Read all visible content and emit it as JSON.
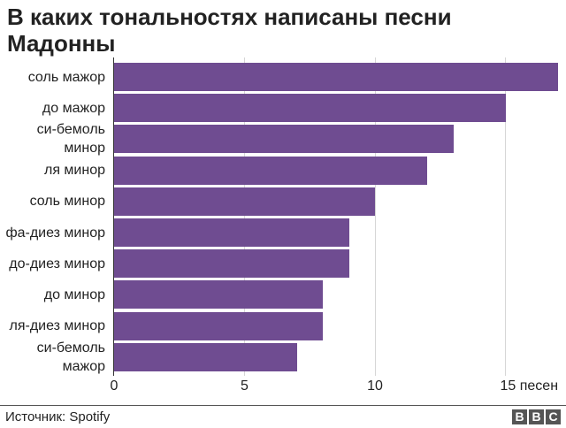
{
  "title": "В каких тональностях написаны песни Мадонны",
  "source": "Источник: Spotify",
  "logo": [
    "B",
    "B",
    "C"
  ],
  "colors": {
    "bar": "#6f4c91",
    "grid": "#d6d6d6",
    "axis": "#333333"
  },
  "ticks": [
    "0",
    "5",
    "10",
    "15 песен"
  ],
  "categories": [
    "соль мажор",
    "до мажор",
    "си-бемоль минор",
    "ля минор",
    "соль минор",
    "фа-диез минор",
    "до-диез минор",
    "до минор",
    "ля-диез минор",
    "си-бемоль мажор"
  ],
  "chart_data": {
    "type": "bar",
    "orientation": "horizontal",
    "title": "В каких тональностях написаны песни Мадонны",
    "categories": [
      "соль мажор",
      "до мажор",
      "си-бемоль минор",
      "ля минор",
      "соль минор",
      "фа-диез минор",
      "до-диез минор",
      "до минор",
      "ля-диез минор",
      "си-бемоль мажор"
    ],
    "values": [
      17,
      15,
      13,
      12,
      10,
      9,
      9,
      8,
      8,
      7
    ],
    "xlabel": "песен",
    "ylabel": "",
    "xlim": [
      0,
      17
    ],
    "xticks": [
      0,
      5,
      10,
      15
    ],
    "xtick_labels": [
      "0",
      "5",
      "10",
      "15 песен"
    ],
    "grid": true,
    "legend": null,
    "source": "Источник: Spotify"
  }
}
